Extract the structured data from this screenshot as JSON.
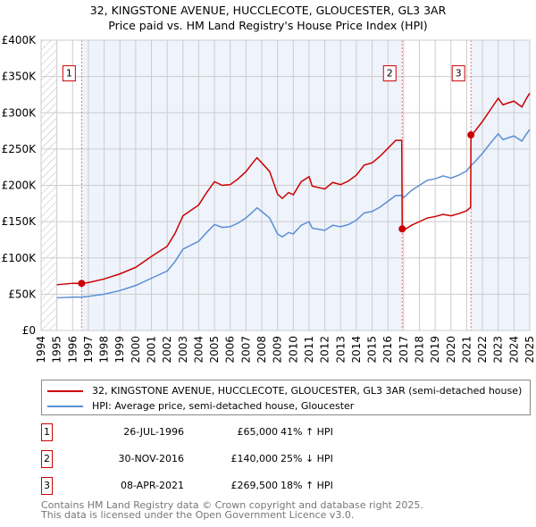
{
  "chart_data": {
    "type": "line",
    "title": "32, KINGSTONE AVENUE, HUCCLECOTE, GLOUCESTER, GL3 3AR",
    "subtitle": "Price paid vs. HM Land Registry's House Price Index (HPI)",
    "xlim": [
      1994,
      2025
    ],
    "ylim": [
      0,
      400000
    ],
    "y_ticks": [
      {
        "v": 0,
        "label": "£0"
      },
      {
        "v": 50000,
        "label": "£50K"
      },
      {
        "v": 100000,
        "label": "£100K"
      },
      {
        "v": 150000,
        "label": "£150K"
      },
      {
        "v": 200000,
        "label": "£200K"
      },
      {
        "v": 250000,
        "label": "£250K"
      },
      {
        "v": 300000,
        "label": "£300K"
      },
      {
        "v": 350000,
        "label": "£350K"
      },
      {
        "v": 400000,
        "label": "£400K"
      }
    ],
    "x_ticks": [
      "1994",
      "1995",
      "1996",
      "1997",
      "1998",
      "1999",
      "2000",
      "2001",
      "2002",
      "2003",
      "2004",
      "2005",
      "2006",
      "2007",
      "2008",
      "2009",
      "2010",
      "2011",
      "2012",
      "2013",
      "2014",
      "2015",
      "2016",
      "2017",
      "2018",
      "2019",
      "2020",
      "2021",
      "2022",
      "2023",
      "2024",
      "2025"
    ],
    "grid": true,
    "series": [
      {
        "name": "32, KINGSTONE AVENUE, HUCCLECOTE, GLOUCESTER, GL3 3AR (semi-detached house)",
        "color": "#cc0000",
        "points": [
          [
            1995,
            63
          ],
          [
            1996,
            65
          ],
          [
            1996.57,
            65
          ],
          [
            1997,
            66
          ],
          [
            1998,
            71
          ],
          [
            1999,
            78
          ],
          [
            2000,
            87
          ],
          [
            2001,
            102
          ],
          [
            2002,
            116
          ],
          [
            2002.5,
            134
          ],
          [
            2003,
            158
          ],
          [
            2004,
            173
          ],
          [
            2004.5,
            190
          ],
          [
            2005,
            205
          ],
          [
            2005.5,
            200
          ],
          [
            2006,
            201
          ],
          [
            2006.5,
            209
          ],
          [
            2007,
            219
          ],
          [
            2007.5,
            233
          ],
          [
            2007.7,
            238
          ],
          [
            2008,
            231
          ],
          [
            2008.5,
            219
          ],
          [
            2009,
            188
          ],
          [
            2009.3,
            182
          ],
          [
            2009.7,
            190
          ],
          [
            2010,
            187
          ],
          [
            2010.5,
            205
          ],
          [
            2011,
            212
          ],
          [
            2011.2,
            199
          ],
          [
            2012,
            195
          ],
          [
            2012.5,
            204
          ],
          [
            2013,
            201
          ],
          [
            2013.5,
            206
          ],
          [
            2014,
            214
          ],
          [
            2014.5,
            228
          ],
          [
            2015,
            231
          ],
          [
            2015.5,
            240
          ],
          [
            2016,
            251
          ],
          [
            2016.5,
            262
          ],
          [
            2016.88,
            262
          ],
          [
            2016.91,
            140
          ],
          [
            2017,
            138
          ],
          [
            2017.5,
            145
          ],
          [
            2018,
            150
          ],
          [
            2018.5,
            155
          ],
          [
            2019,
            157
          ],
          [
            2019.5,
            160
          ],
          [
            2020,
            158
          ],
          [
            2020.5,
            161
          ],
          [
            2021,
            165
          ],
          [
            2021.25,
            170
          ],
          [
            2021.27,
            269.5
          ],
          [
            2021.5,
            274
          ],
          [
            2022,
            288
          ],
          [
            2022.5,
            304
          ],
          [
            2023,
            320
          ],
          [
            2023.3,
            311
          ],
          [
            2023.7,
            314
          ],
          [
            2024,
            316
          ],
          [
            2024.5,
            308
          ],
          [
            2024.8,
            320
          ],
          [
            2025,
            327
          ]
        ]
      },
      {
        "name": "HPI: Average price, semi-detached house, Gloucester",
        "color": "#5b8fd4",
        "points": [
          [
            1995,
            45
          ],
          [
            1996,
            46
          ],
          [
            1996.57,
            46
          ],
          [
            1997,
            47
          ],
          [
            1998,
            50
          ],
          [
            1999,
            55
          ],
          [
            2000,
            62
          ],
          [
            2001,
            72
          ],
          [
            2002,
            82
          ],
          [
            2002.5,
            95
          ],
          [
            2003,
            112
          ],
          [
            2004,
            123
          ],
          [
            2004.5,
            135
          ],
          [
            2005,
            146
          ],
          [
            2005.5,
            142
          ],
          [
            2006,
            143
          ],
          [
            2006.5,
            148
          ],
          [
            2007,
            155
          ],
          [
            2007.5,
            165
          ],
          [
            2007.7,
            169
          ],
          [
            2008,
            164
          ],
          [
            2008.5,
            155
          ],
          [
            2009,
            133
          ],
          [
            2009.3,
            129
          ],
          [
            2009.7,
            135
          ],
          [
            2010,
            133
          ],
          [
            2010.5,
            145
          ],
          [
            2011,
            150
          ],
          [
            2011.2,
            141
          ],
          [
            2012,
            138
          ],
          [
            2012.5,
            145
          ],
          [
            2013,
            143
          ],
          [
            2013.5,
            146
          ],
          [
            2014,
            152
          ],
          [
            2014.5,
            162
          ],
          [
            2015,
            164
          ],
          [
            2015.5,
            170
          ],
          [
            2016,
            178
          ],
          [
            2016.5,
            186
          ],
          [
            2016.9,
            186
          ],
          [
            2017,
            183
          ],
          [
            2017.5,
            193
          ],
          [
            2018,
            200
          ],
          [
            2018.5,
            207
          ],
          [
            2019,
            209
          ],
          [
            2019.5,
            213
          ],
          [
            2020,
            210
          ],
          [
            2020.5,
            214
          ],
          [
            2021,
            220
          ],
          [
            2021.3,
            228
          ],
          [
            2021.5,
            232
          ],
          [
            2022,
            244
          ],
          [
            2022.5,
            258
          ],
          [
            2023,
            271
          ],
          [
            2023.3,
            263
          ],
          [
            2023.7,
            266
          ],
          [
            2024,
            268
          ],
          [
            2024.5,
            261
          ],
          [
            2024.8,
            271
          ],
          [
            2025,
            277
          ]
        ]
      }
    ],
    "y_unit": "thousands GBP",
    "sales": [
      {
        "n": "1",
        "x": 1996.57,
        "y": 65
      },
      {
        "n": "2",
        "x": 2016.91,
        "y": 140
      },
      {
        "n": "3",
        "x": 2021.27,
        "y": 269.5
      }
    ]
  },
  "legend": {
    "property": "32, KINGSTONE AVENUE, HUCCLECOTE, GLOUCESTER, GL3 3AR (semi-detached house)",
    "hpi": "HPI: Average price, semi-detached house, Gloucester",
    "property_color": "#cc0000",
    "hpi_color": "#5b8fd4"
  },
  "transactions": [
    {
      "n": "1",
      "date": "26-JUL-1996",
      "price": "£65,000",
      "hpi": "41% ↑ HPI"
    },
    {
      "n": "2",
      "date": "30-NOV-2016",
      "price": "£140,000",
      "hpi": "25% ↓ HPI"
    },
    {
      "n": "3",
      "date": "08-APR-2021",
      "price": "£269,500",
      "hpi": "18% ↑ HPI"
    }
  ],
  "footer": {
    "line1": "Contains HM Land Registry data © Crown copyright and database right 2025.",
    "line2": "This data is licensed under the Open Government Licence v3.0."
  }
}
